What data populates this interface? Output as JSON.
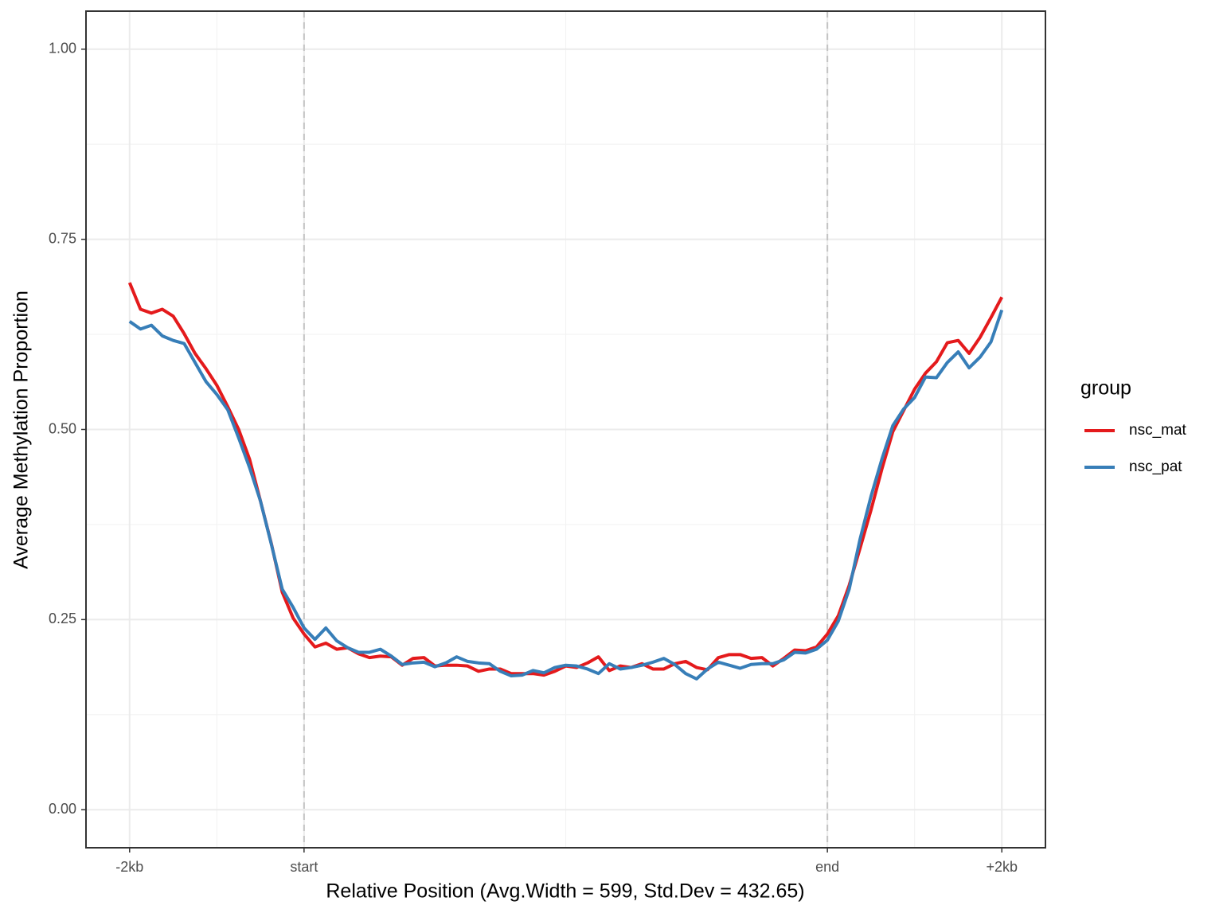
{
  "chart_data": {
    "type": "line",
    "x_label": "Relative Position (Avg.Width = 599, Std.Dev = 432.65)",
    "y_label": "Average Methylation Proportion",
    "legend_title": "group",
    "legend_position": "right",
    "grid": true,
    "xlim": [
      -4,
      84
    ],
    "ylim": [
      -0.05,
      1.05
    ],
    "xticks": [
      {
        "value": 0,
        "label": "-2kb"
      },
      {
        "value": 16,
        "label": "start"
      },
      {
        "value": 64,
        "label": "end"
      },
      {
        "value": 80,
        "label": "+2kb"
      }
    ],
    "xminor": [
      8,
      40,
      72
    ],
    "yticks": [
      {
        "value": 0,
        "label": "0.00"
      },
      {
        "value": 0.25,
        "label": "0.25"
      },
      {
        "value": 0.5,
        "label": "0.50"
      },
      {
        "value": 0.75,
        "label": "0.75"
      },
      {
        "value": 1,
        "label": "1.00"
      }
    ],
    "yminor": [
      0.125,
      0.375,
      0.625,
      0.875
    ],
    "vlines": [
      16,
      64
    ],
    "x": [
      0,
      1,
      2,
      3,
      4,
      5,
      6,
      7,
      8,
      9,
      10,
      11,
      12,
      13,
      14,
      15,
      16,
      17,
      18,
      19,
      20,
      21,
      22,
      23,
      24,
      25,
      26,
      27,
      28,
      29,
      30,
      31,
      32,
      33,
      34,
      35,
      36,
      37,
      38,
      39,
      40,
      41,
      42,
      43,
      44,
      45,
      46,
      47,
      48,
      49,
      50,
      51,
      52,
      53,
      54,
      55,
      56,
      57,
      58,
      59,
      60,
      61,
      62,
      63,
      64,
      65,
      66,
      67,
      68,
      69,
      70,
      71,
      72,
      73,
      74,
      75,
      76,
      77,
      78,
      79,
      80
    ],
    "series": [
      {
        "name": "nsc_mat",
        "color": "#e41a1c",
        "values": [
          0.693,
          0.658,
          0.653,
          0.658,
          0.649,
          0.626,
          0.6,
          0.58,
          0.558,
          0.53,
          0.5,
          0.461,
          0.406,
          0.35,
          0.286,
          0.252,
          0.231,
          0.214,
          0.219,
          0.211,
          0.213,
          0.205,
          0.2,
          0.202,
          0.201,
          0.19,
          0.199,
          0.2,
          0.189,
          0.19,
          0.19,
          0.189,
          0.182,
          0.185,
          0.185,
          0.179,
          0.179,
          0.179,
          0.177,
          0.182,
          0.189,
          0.187,
          0.193,
          0.201,
          0.183,
          0.189,
          0.187,
          0.192,
          0.185,
          0.185,
          0.192,
          0.195,
          0.187,
          0.184,
          0.2,
          0.204,
          0.204,
          0.199,
          0.2,
          0.189,
          0.199,
          0.21,
          0.209,
          0.214,
          0.231,
          0.255,
          0.295,
          0.344,
          0.394,
          0.448,
          0.497,
          0.525,
          0.553,
          0.574,
          0.589,
          0.614,
          0.617,
          0.6,
          0.621,
          0.647,
          0.674
        ]
      },
      {
        "name": "nsc_pat",
        "color": "#377eb8",
        "values": [
          0.642,
          0.632,
          0.637,
          0.623,
          0.617,
          0.613,
          0.588,
          0.563,
          0.546,
          0.526,
          0.489,
          0.45,
          0.406,
          0.349,
          0.29,
          0.266,
          0.239,
          0.224,
          0.239,
          0.222,
          0.213,
          0.207,
          0.207,
          0.211,
          0.202,
          0.191,
          0.193,
          0.194,
          0.188,
          0.193,
          0.201,
          0.195,
          0.193,
          0.192,
          0.182,
          0.176,
          0.177,
          0.183,
          0.18,
          0.187,
          0.19,
          0.189,
          0.185,
          0.179,
          0.192,
          0.185,
          0.187,
          0.19,
          0.194,
          0.199,
          0.191,
          0.179,
          0.172,
          0.185,
          0.194,
          0.19,
          0.186,
          0.191,
          0.192,
          0.192,
          0.197,
          0.207,
          0.206,
          0.211,
          0.223,
          0.248,
          0.29,
          0.356,
          0.412,
          0.461,
          0.505,
          0.527,
          0.542,
          0.569,
          0.568,
          0.588,
          0.602,
          0.581,
          0.595,
          0.615,
          0.657
        ]
      }
    ]
  }
}
